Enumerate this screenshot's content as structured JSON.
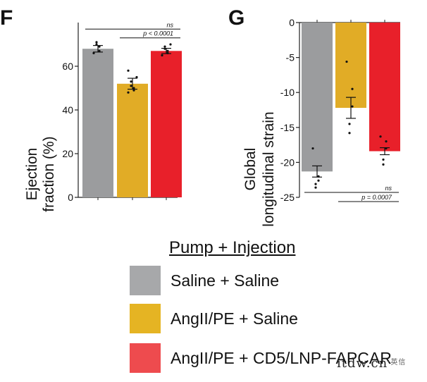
{
  "panels": [
    {
      "letter": "F"
    },
    {
      "letter": "G"
    }
  ],
  "chart_data": [
    {
      "type": "bar",
      "panel": "F",
      "ylabel": "Ejection fraction (%)",
      "ylabel_lines": [
        "Ejection",
        "fraction (%)"
      ],
      "ylim": [
        0,
        80
      ],
      "yticks": [
        0,
        20,
        40,
        60
      ],
      "categories": [
        "Saline + Saline",
        "AngII/PE + Saline",
        "AngII/PE + CD5/LNP-FAPCAR"
      ],
      "values": [
        68,
        52,
        67
      ],
      "errors": [
        1.5,
        2.5,
        1.2
      ],
      "points": [
        [
          66,
          67,
          69,
          70,
          71
        ],
        [
          48,
          49,
          50,
          51,
          53,
          55,
          58
        ],
        [
          65,
          66,
          67,
          68,
          69,
          70
        ]
      ],
      "colors": [
        "#9b9c9e",
        "#e1ac26",
        "#e8202a"
      ],
      "annotations": [
        {
          "text": "ns",
          "from": 0,
          "to": 2,
          "y": 77
        },
        {
          "text": "p < 0.0001",
          "from": 1,
          "to": 2,
          "y": 73
        }
      ]
    },
    {
      "type": "bar",
      "panel": "G",
      "ylabel": "Global longitudinal strain",
      "ylabel_lines": [
        "Global",
        "longitudinal strain"
      ],
      "ylim": [
        -25,
        0
      ],
      "yticks": [
        0,
        -5,
        -10,
        -15,
        -20,
        -25
      ],
      "categories": [
        "Saline + Saline",
        "AngII/PE + Saline",
        "AngII/PE + CD5/LNP-FAPCAR"
      ],
      "values": [
        -21.3,
        -12.2,
        -18.4
      ],
      "errors": [
        0.8,
        1.5,
        0.5
      ],
      "points": [
        [
          -18,
          -22,
          -22.6,
          -23.1,
          -23.6
        ],
        [
          -5.6,
          -9.5,
          -12,
          -14.5,
          -15.8
        ],
        [
          -16.3,
          -17,
          -18,
          -19.6,
          -20.3
        ]
      ],
      "colors": [
        "#9b9c9e",
        "#e1ac26",
        "#e8202a"
      ],
      "annotations": [
        {
          "text": "ns",
          "from": 0,
          "to": 2,
          "y": -24.3
        },
        {
          "text": "p = 0.0007",
          "from": 1,
          "to": 2,
          "y": -25.6
        }
      ]
    }
  ],
  "legend": {
    "title": "Pump + Injection",
    "items": [
      {
        "label": "Saline + Saline",
        "color": "#a7a8aa"
      },
      {
        "label": "AngII/PE + Saline",
        "color": "#e5b423"
      },
      {
        "label": "AngII/PE + CD5/LNP-FAPCAR",
        "color": "#ee4b4e"
      }
    ]
  },
  "watermark": {
    "text": "itdw.cn",
    "small": "·英信"
  }
}
